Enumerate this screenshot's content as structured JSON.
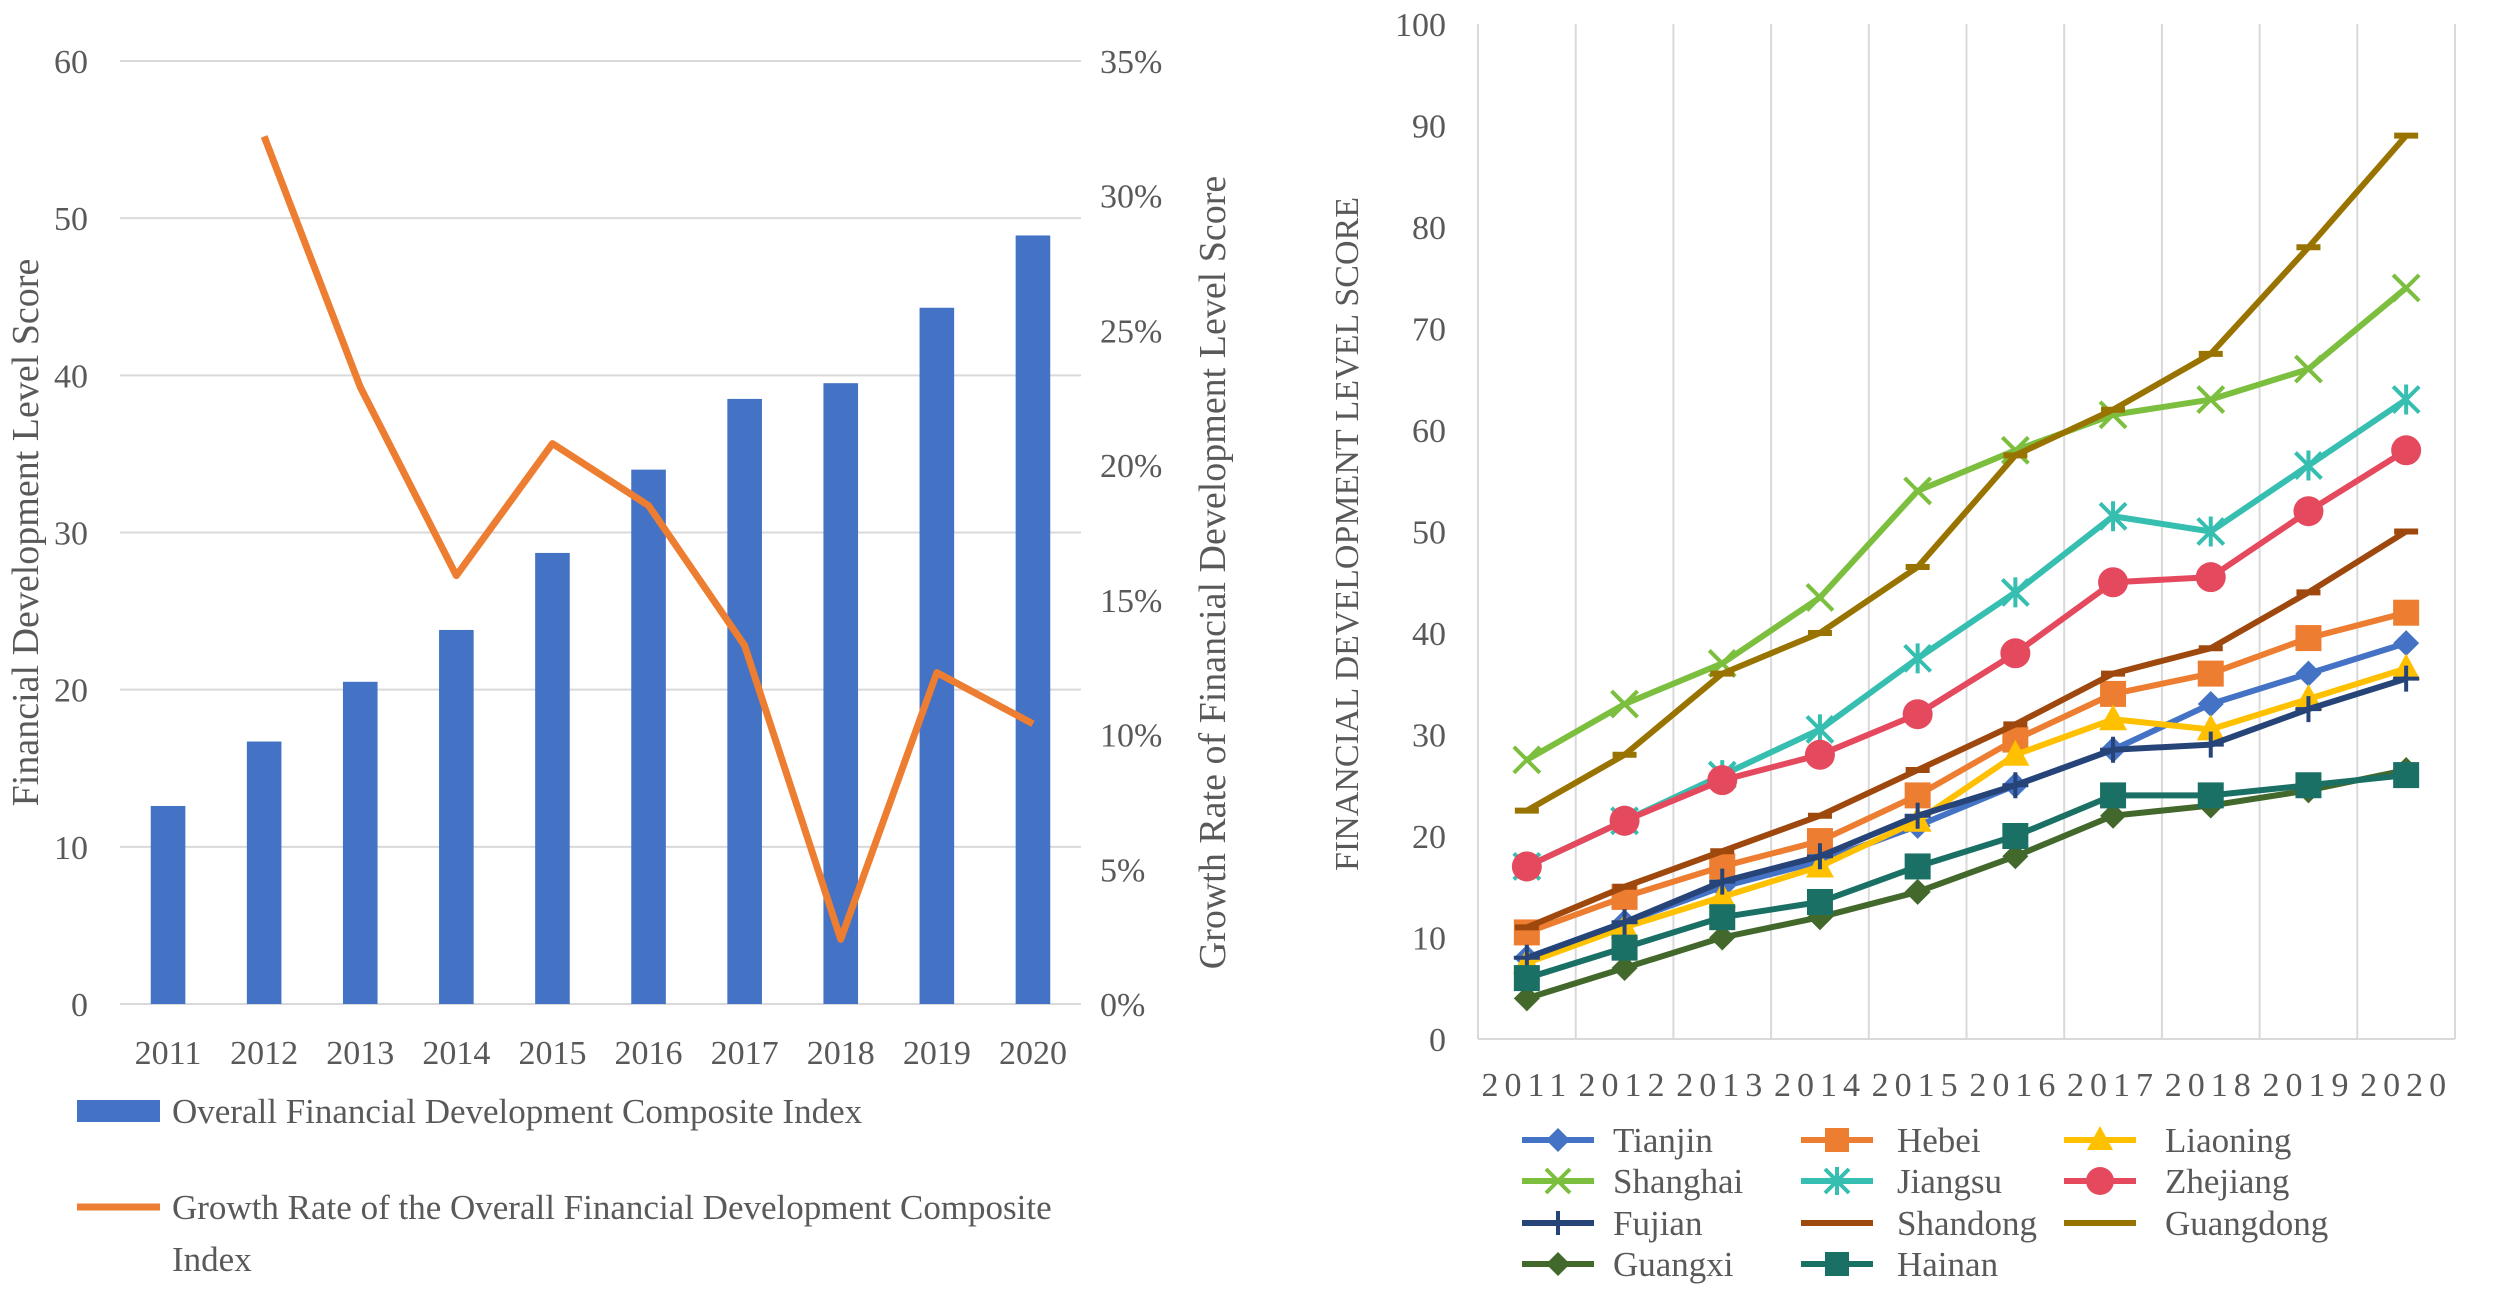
{
  "chart_data": [
    {
      "type": "bar+line",
      "categories": [
        "2011",
        "2012",
        "2013",
        "2014",
        "2015",
        "2016",
        "2017",
        "2018",
        "2019",
        "2020"
      ],
      "series": [
        {
          "name": "Overall Financial Development Composite Index",
          "kind": "bar",
          "axis": "left",
          "color": "#4472C4",
          "values": [
            12.6,
            16.7,
            20.5,
            23.8,
            28.7,
            34.0,
            38.5,
            39.5,
            44.3,
            48.9
          ]
        },
        {
          "name": "Growth Rate of the Overall Financial Development Composite Index",
          "kind": "line",
          "axis": "right",
          "color": "#ED7D31",
          "values": [
            null,
            32.2,
            22.9,
            15.9,
            20.8,
            18.5,
            13.3,
            2.4,
            12.3,
            10.4
          ]
        }
      ],
      "ylabel": "Financial Development Level Score",
      "y2label": "Growth Rate of Financial Development Level Score",
      "ylim": [
        0,
        60
      ],
      "yticks": [
        "0",
        "10",
        "20",
        "30",
        "40",
        "50",
        "60"
      ],
      "y2lim": [
        0,
        35
      ],
      "y2ticks": [
        "0%",
        "5%",
        "10%",
        "15%",
        "20%",
        "25%",
        "30%",
        "35%"
      ],
      "grid": true,
      "legend_position": "bottom"
    },
    {
      "type": "line",
      "categories": [
        "2011",
        "2012",
        "2013",
        "2014",
        "2015",
        "2016",
        "2017",
        "2018",
        "2019",
        "2020"
      ],
      "series": [
        {
          "name": "Tianjin",
          "color": "#4472C4",
          "marker": "diamond",
          "values": [
            8,
            11.5,
            15,
            17.5,
            21,
            25,
            28.5,
            33,
            36,
            39
          ]
        },
        {
          "name": "Hebei",
          "color": "#ED7D31",
          "marker": "square",
          "values": [
            10.5,
            14,
            17,
            19.5,
            24,
            29.5,
            34,
            36,
            39.5,
            42
          ]
        },
        {
          "name": "Liaoning",
          "color": "#FFC000",
          "marker": "triangle",
          "values": [
            7.5,
            11,
            14,
            17,
            21.5,
            28,
            31.5,
            30.5,
            33.5,
            36.5
          ]
        },
        {
          "name": "Shanghai",
          "color": "#7CBF3F",
          "marker": "x",
          "values": [
            27.5,
            33,
            37,
            43.5,
            54,
            58,
            61.5,
            63,
            66,
            74
          ]
        },
        {
          "name": "Jiangsu",
          "color": "#36BFB0",
          "marker": "asterisk",
          "values": [
            17,
            21.5,
            26,
            30.5,
            37.5,
            44,
            51.5,
            50,
            56.5,
            63
          ]
        },
        {
          "name": "Zhejiang",
          "color": "#E5495E",
          "marker": "circle",
          "values": [
            17,
            21.5,
            25.5,
            28,
            32,
            38,
            45,
            45.5,
            52,
            58
          ]
        },
        {
          "name": "Fujian",
          "color": "#264478",
          "marker": "plus",
          "values": [
            8,
            11.5,
            15.5,
            18,
            22,
            25,
            28.5,
            29,
            32.5,
            35.5
          ]
        },
        {
          "name": "Shandong",
          "color": "#9E480E",
          "marker": "dash",
          "values": [
            11,
            15,
            18.5,
            22,
            26.5,
            31,
            36,
            38.5,
            44,
            50
          ]
        },
        {
          "name": "Guangdong",
          "color": "#997300",
          "marker": "dash",
          "values": [
            22.5,
            28,
            36,
            40,
            46.5,
            57.5,
            62,
            67.5,
            78,
            89
          ]
        },
        {
          "name": "Guangxi",
          "color": "#43682B",
          "marker": "diamond",
          "values": [
            4,
            7,
            10,
            12,
            14.5,
            18,
            22,
            23,
            24.5,
            26.5
          ]
        },
        {
          "name": "Hainan",
          "color": "#1B7066",
          "marker": "square",
          "values": [
            6,
            9,
            12,
            13.5,
            17,
            20,
            24,
            24,
            25,
            26
          ]
        }
      ],
      "ylabel": "FINANCIAL DEVELOPMENT LEVEL SCORE",
      "ylim": [
        0,
        100
      ],
      "yticks": [
        "0",
        "10",
        "20",
        "30",
        "40",
        "50",
        "60",
        "70",
        "80",
        "90",
        "100"
      ],
      "grid": true,
      "legend_position": "bottom"
    }
  ]
}
